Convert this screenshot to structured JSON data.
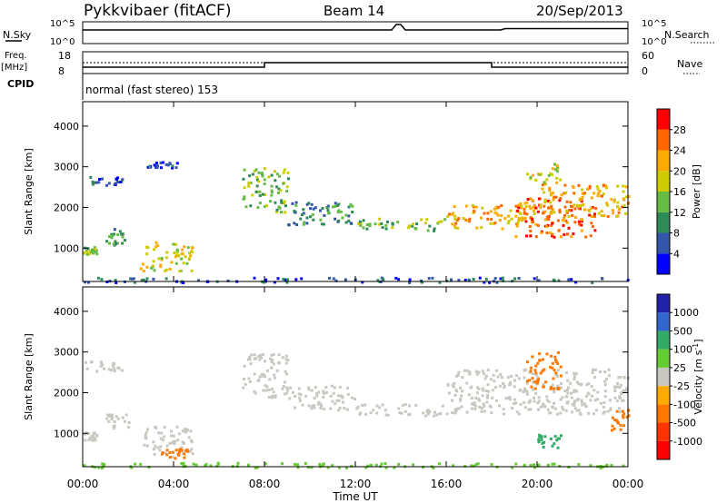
{
  "header": {
    "station": "Pykkvibaer (fitACF)",
    "beam": "Beam 14",
    "date": "20/Sep/2013"
  },
  "status_panels": {
    "nsky_label": "N.Sky",
    "nsky_ticks": [
      "10^5",
      "10^0"
    ],
    "nsearch_label": "N.Search",
    "nsearch_ticks": [
      "10^5",
      "10^0"
    ],
    "freq_label_1": "Freq.",
    "freq_label_2": "[MHz]",
    "freq_ticks": [
      "18",
      "8"
    ],
    "nave_label": "Nave",
    "nave_ticks": [
      "60",
      "0"
    ],
    "cpid_label": "CPID",
    "cpid_text": "normal (fast stereo) 153"
  },
  "chart_data": [
    {
      "type": "heatmap",
      "name": "power",
      "ylabel": "Slant Range [km]",
      "ylim": [
        180,
        4600
      ],
      "yticks": [
        "1000",
        "2000",
        "3000",
        "4000"
      ],
      "colorbar_label": "Power [dB]",
      "colorbar_ticks": [
        "4",
        "8",
        "12",
        "16",
        "20",
        "24",
        "28"
      ],
      "colors": [
        "#0000ff",
        "#3355aa",
        "#2e8b57",
        "#66bb44",
        "#cccc00",
        "#ffaa00",
        "#ff6600",
        "#ff0000"
      ],
      "echo_bands": [
        {
          "t": [
            0.0,
            1.7
          ],
          "range": [
            2550,
            2800
          ],
          "level": 1
        },
        {
          "t": [
            0.0,
            0.6
          ],
          "range": [
            850,
            1050
          ],
          "level": 3
        },
        {
          "t": [
            1.0,
            2.0
          ],
          "range": [
            1100,
            1500
          ],
          "level": 2
        },
        {
          "t": [
            2.5,
            4.8
          ],
          "range": [
            450,
            1200
          ],
          "level": 4
        },
        {
          "t": [
            2.8,
            4.2
          ],
          "range": [
            3000,
            3150
          ],
          "level": 1
        },
        {
          "t": [
            7.0,
            9.0
          ],
          "range": [
            1900,
            3000
          ],
          "level": 3
        },
        {
          "t": [
            9.0,
            12.0
          ],
          "range": [
            1600,
            2200
          ],
          "level": 2
        },
        {
          "t": [
            12.0,
            16.0
          ],
          "range": [
            1450,
            1750
          ],
          "level": 3
        },
        {
          "t": [
            16.0,
            20.0
          ],
          "range": [
            1500,
            2100
          ],
          "level": 5
        },
        {
          "t": [
            19.0,
            22.5
          ],
          "range": [
            1300,
            2300
          ],
          "level": 6
        },
        {
          "t": [
            20.0,
            24.0
          ],
          "range": [
            1800,
            2600
          ],
          "level": 5
        },
        {
          "t": [
            19.5,
            21.0
          ],
          "range": [
            2600,
            3100
          ],
          "level": 4
        },
        {
          "t": [
            0.0,
            24.0
          ],
          "range": [
            180,
            300
          ],
          "level": 1
        }
      ]
    },
    {
      "type": "heatmap",
      "name": "velocity",
      "ylabel": "Slant Range [km]",
      "ylim": [
        180,
        4600
      ],
      "yticks": [
        "1000",
        "2000",
        "3000",
        "4000"
      ],
      "colorbar_label": "Velocity [m s",
      "colorbar_label_sup": "-1",
      "colorbar_label_end": "]",
      "colorbar_ticks": [
        "1000",
        "500",
        "100",
        "25",
        "-25",
        "-100",
        "-500",
        "-1000"
      ],
      "colors": [
        "#2222aa",
        "#3366cc",
        "#33aa66",
        "#66cc33",
        "#c8c8c0",
        "#ffaa00",
        "#ff7700",
        "#ff3300",
        "#ff0000"
      ],
      "echo_bands": [
        {
          "t": [
            0.0,
            1.7
          ],
          "range": [
            2550,
            2800
          ],
          "level": 4
        },
        {
          "t": [
            0.0,
            0.6
          ],
          "range": [
            850,
            1050
          ],
          "level": 4
        },
        {
          "t": [
            1.0,
            2.0
          ],
          "range": [
            1100,
            1500
          ],
          "level": 4
        },
        {
          "t": [
            2.5,
            4.8
          ],
          "range": [
            450,
            1200
          ],
          "level": 4
        },
        {
          "t": [
            3.3,
            4.6
          ],
          "range": [
            400,
            650
          ],
          "level": 6
        },
        {
          "t": [
            7.0,
            9.0
          ],
          "range": [
            1900,
            3000
          ],
          "level": 4
        },
        {
          "t": [
            9.0,
            12.0
          ],
          "range": [
            1600,
            2200
          ],
          "level": 4
        },
        {
          "t": [
            12.0,
            16.0
          ],
          "range": [
            1450,
            1750
          ],
          "level": 4
        },
        {
          "t": [
            16.0,
            24.0
          ],
          "range": [
            1500,
            2600
          ],
          "level": 4
        },
        {
          "t": [
            19.5,
            21.0
          ],
          "range": [
            2100,
            3100
          ],
          "level": 6
        },
        {
          "t": [
            20.0,
            21.0
          ],
          "range": [
            650,
            1000
          ],
          "level": 2
        },
        {
          "t": [
            23.2,
            24.0
          ],
          "range": [
            1100,
            1600
          ],
          "level": 6
        },
        {
          "t": [
            0.0,
            24.0
          ],
          "range": [
            180,
            300
          ],
          "level": 3
        }
      ]
    }
  ],
  "x_axis": {
    "label": "Time UT",
    "ticks": [
      "00:00",
      "04:00",
      "08:00",
      "12:00",
      "16:00",
      "20:00",
      "00:00"
    ],
    "range_hours": [
      0,
      24
    ]
  }
}
